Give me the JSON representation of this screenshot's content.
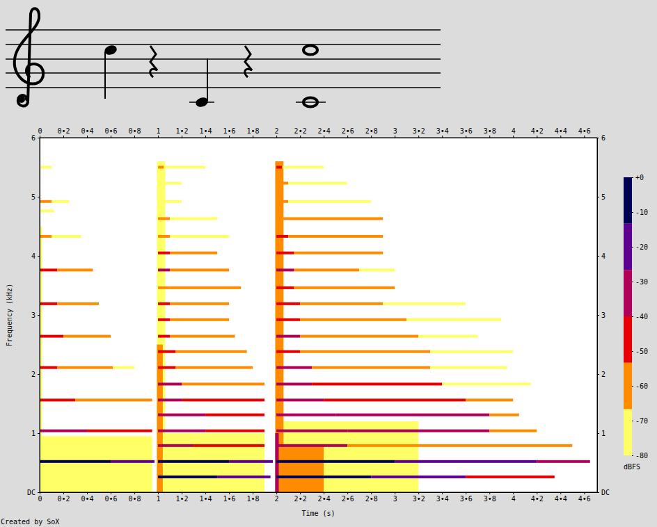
{
  "chart_data": {
    "type": "spectrogram",
    "x_label": "Time (s)",
    "y_label": "Frequency (kHz)",
    "caption": "Created by SoX",
    "xlim": [
      0,
      4.71
    ],
    "ylim": [
      0,
      6
    ],
    "xticks": [
      0,
      {
        "value": 0.2,
        "label": "0•2"
      },
      {
        "value": 0.4,
        "label": "0•4"
      },
      {
        "value": 0.6,
        "label": "0•6"
      },
      {
        "value": 0.8,
        "label": "0•8"
      },
      1,
      {
        "value": 1.2,
        "label": "1•2"
      },
      {
        "value": 1.4,
        "label": "1•4"
      },
      {
        "value": 1.6,
        "label": "1•6"
      },
      {
        "value": 1.8,
        "label": "1•8"
      },
      2,
      {
        "value": 2.2,
        "label": "2•2"
      },
      {
        "value": 2.4,
        "label": "2•4"
      },
      {
        "value": 2.6,
        "label": "2•6"
      },
      {
        "value": 2.8,
        "label": "2•8"
      },
      3,
      {
        "value": 3.2,
        "label": "3•2"
      },
      {
        "value": 3.4,
        "label": "3•4"
      },
      {
        "value": 3.6,
        "label": "3•6"
      },
      {
        "value": 3.8,
        "label": "3•8"
      },
      4,
      {
        "value": 4.2,
        "label": "4•2"
      },
      {
        "value": 4.4,
        "label": "4•4"
      },
      {
        "value": 4.6,
        "label": "4•6"
      }
    ],
    "yticks": [
      {
        "value": 0,
        "label": "DC"
      },
      1,
      2,
      3,
      4,
      5,
      6
    ],
    "colorbar": {
      "label": "dBFS",
      "range": [
        -80,
        0
      ],
      "ticks": [
        {
          "value": 0,
          "label": "+0"
        },
        -10,
        -20,
        -30,
        -40,
        -50,
        -60,
        -70,
        -80
      ],
      "colors": [
        "#ffff66",
        "#ff8c00",
        "#e60000",
        "#b0005a",
        "#5c0090",
        "#000055"
      ]
    },
    "regions": [
      [
        0,
        0.95,
        0,
        0.95,
        -74
      ],
      [
        0,
        0.02,
        0,
        4.5,
        -72
      ],
      [
        1.0,
        1.9,
        0,
        1.0,
        -74
      ],
      [
        0.99,
        1.06,
        0,
        5.6,
        -72
      ],
      [
        0.99,
        1.04,
        0,
        2.5,
        -62
      ],
      [
        2.0,
        3.2,
        0,
        1.2,
        -72
      ],
      [
        2.0,
        2.4,
        0,
        0.8,
        -62
      ],
      [
        1.99,
        2.06,
        0,
        5.6,
        -66
      ],
      [
        1.99,
        2.02,
        0,
        1.0,
        -35
      ]
    ],
    "streaks": [
      [
        0,
        0.6,
        0.52,
        -8
      ],
      [
        0.6,
        0.97,
        0.52,
        -20
      ],
      [
        0,
        0.4,
        1.04,
        -40
      ],
      [
        0.4,
        0.95,
        1.04,
        -50
      ],
      [
        0,
        0.3,
        1.56,
        -45
      ],
      [
        0.3,
        0.95,
        1.56,
        -58
      ],
      [
        0,
        0.15,
        2.11,
        -42
      ],
      [
        0.15,
        0.62,
        2.11,
        -55
      ],
      [
        0.62,
        0.8,
        2.11,
        -72
      ],
      [
        0,
        0.2,
        2.64,
        -45
      ],
      [
        0.2,
        0.6,
        2.64,
        -58
      ],
      [
        0,
        0.15,
        3.19,
        -45
      ],
      [
        0.15,
        0.5,
        3.19,
        -60
      ],
      [
        0,
        0.15,
        3.76,
        -45
      ],
      [
        0.15,
        0.45,
        3.76,
        -62
      ],
      [
        0,
        0.1,
        4.33,
        -55
      ],
      [
        0.1,
        0.35,
        4.33,
        -70
      ],
      [
        0,
        0.12,
        4.76,
        -72
      ],
      [
        0,
        0.1,
        4.92,
        -55
      ],
      [
        0.1,
        0.25,
        4.92,
        -70
      ],
      [
        0,
        0.1,
        5.5,
        -72
      ],
      [
        1.0,
        1.5,
        0.26,
        -12
      ],
      [
        1.5,
        1.95,
        0.26,
        -22
      ],
      [
        1.0,
        1.6,
        0.52,
        -12
      ],
      [
        1.6,
        1.97,
        0.52,
        -25
      ],
      [
        1.0,
        1.3,
        0.79,
        -40
      ],
      [
        1.3,
        1.9,
        0.79,
        -52
      ],
      [
        1.0,
        1.4,
        1.04,
        -30
      ],
      [
        1.4,
        1.9,
        1.04,
        -45
      ],
      [
        1.0,
        1.4,
        1.31,
        -30
      ],
      [
        1.4,
        1.9,
        1.31,
        -45
      ],
      [
        1.0,
        1.2,
        1.56,
        -35
      ],
      [
        1.2,
        1.9,
        1.56,
        -50
      ],
      [
        1.0,
        1.2,
        1.83,
        -40
      ],
      [
        1.2,
        1.9,
        1.83,
        -55
      ],
      [
        1.0,
        1.15,
        2.11,
        -45
      ],
      [
        1.15,
        1.8,
        2.11,
        -58
      ],
      [
        1.0,
        1.15,
        2.38,
        -45
      ],
      [
        1.15,
        1.75,
        2.38,
        -60
      ],
      [
        1.0,
        1.1,
        2.64,
        -48
      ],
      [
        1.1,
        1.65,
        2.64,
        -60
      ],
      [
        1.0,
        1.1,
        2.92,
        -50
      ],
      [
        1.1,
        1.6,
        2.92,
        -65
      ],
      [
        1.0,
        1.1,
        3.19,
        -50
      ],
      [
        1.1,
        1.6,
        3.19,
        -62
      ],
      [
        1.0,
        1.1,
        3.46,
        -55
      ],
      [
        1.1,
        1.7,
        3.46,
        -65
      ],
      [
        1.0,
        1.1,
        3.76,
        -38
      ],
      [
        1.1,
        1.6,
        3.76,
        -58
      ],
      [
        1.0,
        1.1,
        4.05,
        -45
      ],
      [
        1.1,
        1.5,
        4.05,
        -60
      ],
      [
        1.0,
        1.1,
        4.33,
        -55
      ],
      [
        1.1,
        1.6,
        4.33,
        -70
      ],
      [
        1.0,
        1.1,
        4.63,
        -55
      ],
      [
        1.1,
        1.5,
        4.63,
        -68
      ],
      [
        1.0,
        1.2,
        4.92,
        -72
      ],
      [
        1.0,
        1.2,
        5.23,
        -72
      ],
      [
        1.0,
        1.05,
        5.5,
        -65
      ],
      [
        1.05,
        1.4,
        5.5,
        -74
      ],
      [
        2.0,
        2.8,
        0.26,
        -12
      ],
      [
        2.8,
        3.6,
        0.26,
        -25
      ],
      [
        3.6,
        4.35,
        0.26,
        -45
      ],
      [
        2.0,
        3.0,
        0.52,
        -8
      ],
      [
        3.0,
        4.2,
        0.52,
        -22
      ],
      [
        4.2,
        4.65,
        0.52,
        -40
      ],
      [
        2.0,
        2.6,
        0.79,
        -38
      ],
      [
        2.6,
        4.5,
        0.79,
        -55
      ],
      [
        2.0,
        2.6,
        1.04,
        -28
      ],
      [
        2.6,
        3.8,
        1.04,
        -40
      ],
      [
        3.8,
        4.2,
        1.04,
        -58
      ],
      [
        2.0,
        2.5,
        1.31,
        -28
      ],
      [
        2.5,
        3.8,
        1.31,
        -40
      ],
      [
        3.8,
        4.05,
        1.31,
        -58
      ],
      [
        2.0,
        2.4,
        1.56,
        -32
      ],
      [
        2.4,
        3.6,
        1.56,
        -45
      ],
      [
        3.6,
        4.0,
        1.56,
        -60
      ],
      [
        2.0,
        2.3,
        1.83,
        -38
      ],
      [
        2.3,
        3.4,
        1.83,
        -52
      ],
      [
        3.4,
        4.15,
        1.83,
        -68
      ],
      [
        2.0,
        2.3,
        2.11,
        -40
      ],
      [
        2.3,
        3.3,
        2.11,
        -55
      ],
      [
        3.3,
        3.95,
        2.11,
        -68
      ],
      [
        2.0,
        2.2,
        2.38,
        -42
      ],
      [
        2.2,
        3.3,
        2.38,
        -55
      ],
      [
        3.3,
        4.0,
        2.38,
        -70
      ],
      [
        2.0,
        2.2,
        2.64,
        -40
      ],
      [
        2.2,
        3.2,
        2.64,
        -56
      ],
      [
        3.2,
        3.7,
        2.64,
        -70
      ],
      [
        2.0,
        2.2,
        2.92,
        -48
      ],
      [
        2.2,
        3.1,
        2.92,
        -60
      ],
      [
        3.1,
        3.9,
        2.92,
        -72
      ],
      [
        2.0,
        2.2,
        3.19,
        -45
      ],
      [
        2.2,
        2.9,
        3.19,
        -58
      ],
      [
        2.9,
        3.6,
        3.19,
        -72
      ],
      [
        2.0,
        2.15,
        3.46,
        -50
      ],
      [
        2.15,
        3.0,
        3.46,
        -65
      ],
      [
        2.0,
        2.15,
        3.76,
        -38
      ],
      [
        2.15,
        2.7,
        3.76,
        -55
      ],
      [
        2.7,
        3.0,
        3.76,
        -68
      ],
      [
        2.0,
        2.15,
        4.05,
        -45
      ],
      [
        2.15,
        2.9,
        4.05,
        -62
      ],
      [
        2.0,
        2.1,
        4.33,
        -50
      ],
      [
        2.1,
        2.9,
        4.33,
        -66
      ],
      [
        2.0,
        2.1,
        4.63,
        -55
      ],
      [
        2.1,
        2.9,
        4.63,
        -65
      ],
      [
        2.0,
        2.1,
        4.92,
        -60
      ],
      [
        2.1,
        2.8,
        4.92,
        -72
      ],
      [
        2.0,
        2.1,
        5.23,
        -65
      ],
      [
        2.1,
        2.6,
        5.23,
        -72
      ],
      [
        2.0,
        2.05,
        5.5,
        -50
      ],
      [
        2.05,
        2.4,
        5.5,
        -70
      ]
    ]
  }
}
